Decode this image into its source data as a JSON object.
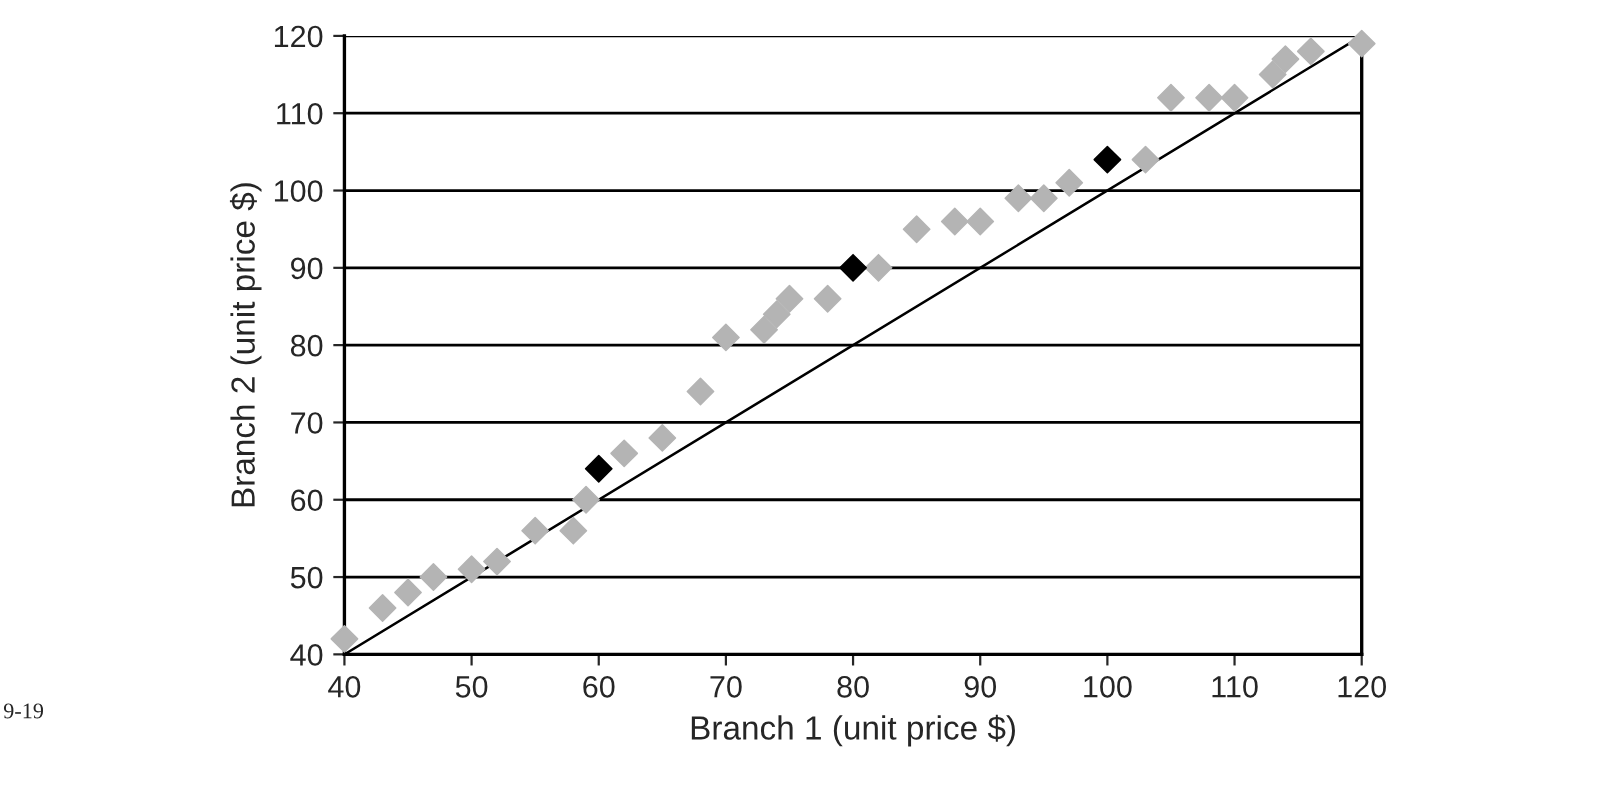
{
  "chart_data": {
    "type": "scatter",
    "xlabel": "Branch 1 (unit price $)",
    "ylabel": "Branch 2 (unit price $)",
    "xlim": [
      40,
      120
    ],
    "ylim": [
      40,
      120
    ],
    "xticks": [
      40,
      50,
      60,
      70,
      80,
      90,
      100,
      110,
      120
    ],
    "yticks": [
      40,
      50,
      60,
      70,
      80,
      90,
      100,
      110,
      120
    ],
    "grid": "y",
    "marker": "diamond",
    "legend": false,
    "annotations": [
      "9-19"
    ],
    "series": [
      {
        "color": "#b4b4b4",
        "x": [
          40,
          43,
          45,
          47,
          50,
          52,
          55,
          58,
          59,
          62,
          65,
          68,
          70,
          73,
          74,
          75,
          78,
          82,
          85,
          88,
          90,
          93,
          95,
          97,
          103,
          105,
          108,
          110,
          113,
          114,
          116,
          120
        ],
        "values": [
          42,
          46,
          48,
          50,
          51,
          52,
          56,
          56,
          60,
          66,
          68,
          74,
          81,
          82,
          84,
          86,
          86,
          90,
          95,
          96,
          96,
          99,
          99,
          101,
          104,
          112,
          112,
          112,
          115,
          117,
          118,
          119
        ]
      },
      {
        "color": "#000000",
        "x": [
          60,
          80,
          100
        ],
        "values": [
          64,
          90,
          104
        ]
      },
      {
        "type": "line",
        "color": "#000000",
        "line_style": "solid",
        "marker": "none",
        "x": [
          40,
          120
        ],
        "values": [
          40,
          120
        ]
      }
    ]
  }
}
